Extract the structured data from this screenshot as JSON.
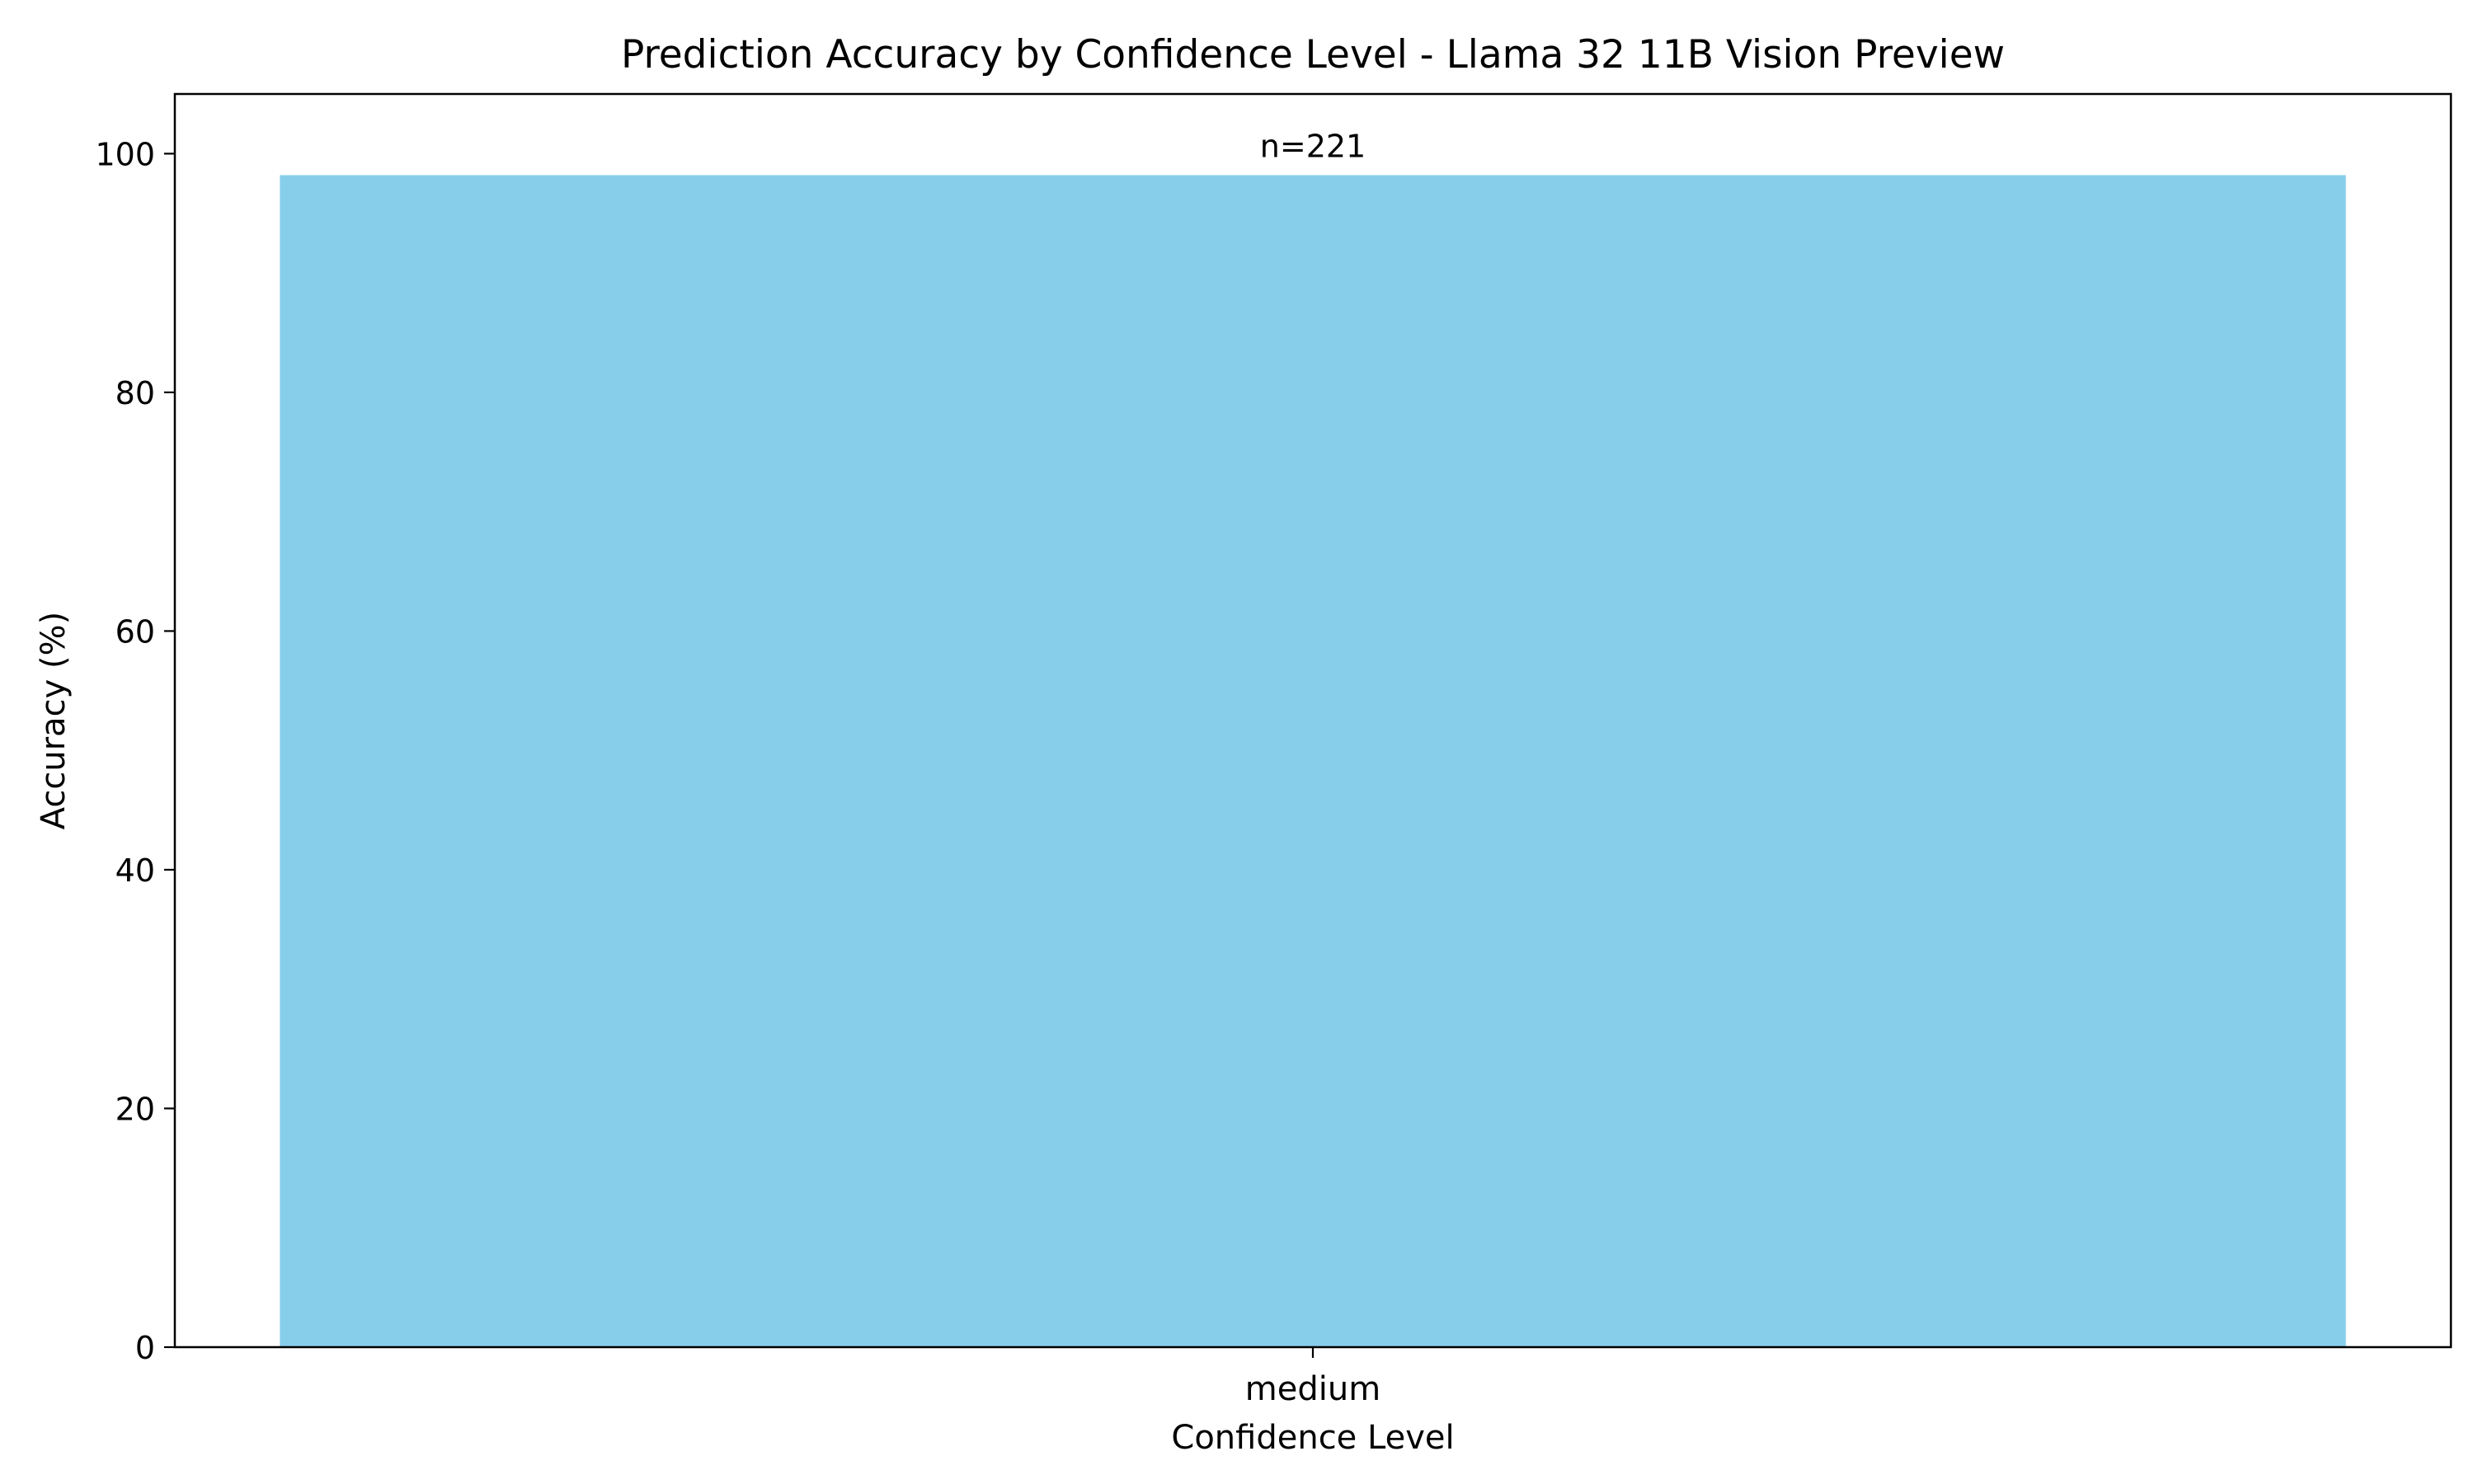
{
  "chart_data": {
    "type": "bar",
    "title": "Prediction Accuracy by Confidence Level - Llama 32 11B Vision Preview",
    "xlabel": "Confidence Level",
    "ylabel": "Accuracy (%)",
    "categories": [
      "medium"
    ],
    "values": [
      98.2
    ],
    "bar_labels": [
      "n=221"
    ],
    "ylim": [
      0,
      105
    ],
    "yticks": [
      0,
      20,
      40,
      60,
      80,
      100
    ],
    "grid": false,
    "legend": "none",
    "bar_color": "#87CEEB"
  }
}
